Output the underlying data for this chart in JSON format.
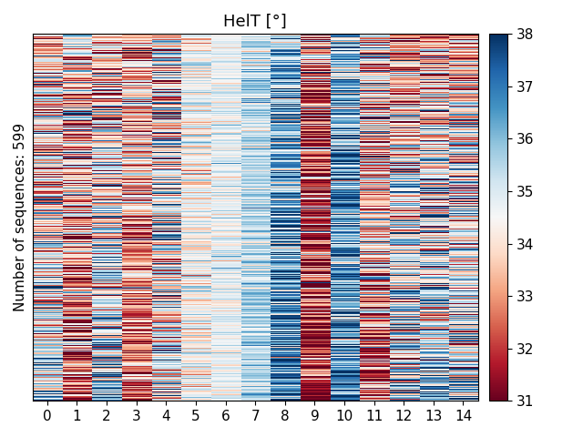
{
  "title": "HelT [°]",
  "ylabel": "Number of sequences: 599",
  "n_rows": 599,
  "n_cols": 15,
  "x_tick_labels": [
    "0",
    "1",
    "2",
    "3",
    "4",
    "5",
    "6",
    "7",
    "8",
    "9",
    "10",
    "11",
    "12",
    "13",
    "14"
  ],
  "colormap": "RdBu",
  "vmin": 31,
  "vmax": 38,
  "colorbar_ticks": [
    31,
    32,
    33,
    34,
    35,
    36,
    37,
    38
  ],
  "seed": 42,
  "col_means": [
    34.5,
    33.0,
    34.5,
    33.2,
    34.5,
    34.5,
    34.8,
    35.5,
    36.5,
    32.0,
    36.5,
    33.5,
    34.5,
    34.5,
    34.5
  ],
  "col_stds": [
    2.0,
    2.0,
    2.0,
    1.5,
    2.0,
    0.8,
    0.6,
    0.7,
    1.5,
    2.0,
    1.5,
    2.0,
    2.0,
    2.0,
    2.0
  ],
  "row_sort_weights": [
    1,
    -1,
    1,
    -1,
    0,
    0,
    0,
    1,
    1,
    -1,
    1,
    -1,
    1,
    1,
    1
  ],
  "title_fontsize": 13,
  "ylabel_fontsize": 11,
  "tick_fontsize": 11,
  "cbar_fontsize": 11,
  "figsize": [
    6.4,
    4.8
  ],
  "dpi": 100
}
